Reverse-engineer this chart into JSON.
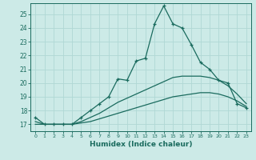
{
  "title": "",
  "xlabel": "Humidex (Indice chaleur)",
  "ylabel": "",
  "bg_color": "#cceae7",
  "line_color": "#1a6b5e",
  "xlim": [
    -0.5,
    23.5
  ],
  "ylim": [
    16.5,
    25.8
  ],
  "xticks": [
    0,
    1,
    2,
    3,
    4,
    5,
    6,
    7,
    8,
    9,
    10,
    11,
    12,
    13,
    14,
    15,
    16,
    17,
    18,
    19,
    20,
    21,
    22,
    23
  ],
  "yticks": [
    17,
    18,
    19,
    20,
    21,
    22,
    23,
    24,
    25
  ],
  "grid_color": "#b0d8d4",
  "series1_x": [
    0,
    1,
    2,
    3,
    4,
    5,
    6,
    7,
    8,
    9,
    10,
    11,
    12,
    13,
    14,
    15,
    16,
    17,
    18,
    19,
    20,
    21,
    22,
    23
  ],
  "series1_y": [
    17.5,
    17.0,
    17.0,
    17.0,
    17.0,
    17.5,
    18.0,
    18.5,
    19.0,
    20.3,
    20.2,
    21.6,
    21.8,
    24.3,
    25.6,
    24.3,
    24.0,
    22.8,
    21.5,
    21.0,
    20.2,
    20.0,
    18.5,
    18.2
  ],
  "series2_x": [
    0,
    1,
    2,
    3,
    4,
    5,
    6,
    7,
    8,
    9,
    10,
    11,
    12,
    13,
    14,
    15,
    16,
    17,
    18,
    19,
    20,
    21,
    22,
    23
  ],
  "series2_y": [
    17.2,
    17.0,
    17.0,
    17.0,
    17.0,
    17.2,
    17.5,
    17.8,
    18.2,
    18.6,
    18.9,
    19.2,
    19.5,
    19.8,
    20.1,
    20.4,
    20.5,
    20.5,
    20.5,
    20.4,
    20.2,
    19.8,
    19.2,
    18.5
  ],
  "series3_x": [
    0,
    1,
    2,
    3,
    4,
    5,
    6,
    7,
    8,
    9,
    10,
    11,
    12,
    13,
    14,
    15,
    16,
    17,
    18,
    19,
    20,
    21,
    22,
    23
  ],
  "series3_y": [
    17.0,
    17.0,
    17.0,
    17.0,
    17.0,
    17.1,
    17.2,
    17.4,
    17.6,
    17.8,
    18.0,
    18.2,
    18.4,
    18.6,
    18.8,
    19.0,
    19.1,
    19.2,
    19.3,
    19.3,
    19.2,
    19.0,
    18.7,
    18.3
  ]
}
